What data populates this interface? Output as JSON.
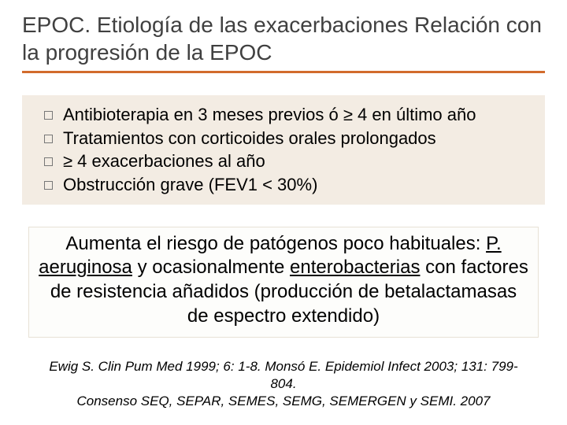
{
  "title": "EPOC. Etiología de las exacerbaciones Relación con la progresión de la EPOC",
  "bullets": [
    "Antibioterapia en 3 meses previos ó ≥ 4 en último año",
    "Tratamientos con corticoides orales prolongados",
    "≥ 4 exacerbaciones al año",
    "Obstrucción grave (FEV1 < 30%)"
  ],
  "paragraph": {
    "pre": "Aumenta el riesgo de patógenos poco habituales: ",
    "ul1": "P. aeruginosa",
    "mid": " y ocasionalmente ",
    "ul2": "enterobacterias",
    "post": " con factores de resistencia añadidos (producción de betalactamasas de espectro extendido)"
  },
  "references": {
    "line1": "Ewig S. Clin Pum Med 1999; 6: 1-8.  Monsó E. Epidemiol Infect 2003; 131: 799-804.",
    "line2": "Consenso SEQ, SEPAR, SEMES, SEMG, SEMERGEN y SEMI. 2007"
  },
  "colors": {
    "accent": "#d26b2c",
    "bullet_bg": "#f3ece3",
    "para_bg": "#fdfdfb",
    "para_border": "#e8e2d6",
    "title_color": "#404040"
  }
}
